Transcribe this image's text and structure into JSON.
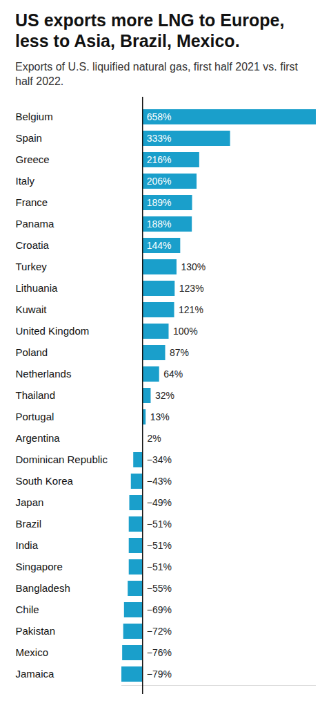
{
  "chart_data": {
    "type": "bar",
    "title": "US exports more LNG to Europe, less to Asia, Brazil, Mexico.",
    "subtitle": "Exports of U.S. liquified natural gas, first half 2021 vs. first half 2022.",
    "orientation": "horizontal",
    "categories": [
      "Belgium",
      "Spain",
      "Greece",
      "Italy",
      "France",
      "Panama",
      "Croatia",
      "Turkey",
      "Lithuania",
      "Kuwait",
      "United Kingdom",
      "Poland",
      "Netherlands",
      "Thailand",
      "Portugal",
      "Argentina",
      "Dominican Republic",
      "South Korea",
      "Japan",
      "Brazil",
      "India",
      "Singapore",
      "Bangladesh",
      "Chile",
      "Pakistan",
      "Mexico",
      "Jamaica"
    ],
    "values": [
      658,
      333,
      216,
      206,
      189,
      188,
      144,
      130,
      123,
      121,
      100,
      87,
      64,
      32,
      13,
      2,
      -34,
      -43,
      -49,
      -51,
      -51,
      -51,
      -55,
      -69,
      -72,
      -76,
      -79
    ],
    "value_labels": [
      "658%",
      "333%",
      "216%",
      "206%",
      "189%",
      "188%",
      "144%",
      "130%",
      "123%",
      "121%",
      "100%",
      "87%",
      "64%",
      "32%",
      "13%",
      "2%",
      "−34%",
      "−43%",
      "−49%",
      "−51%",
      "−51%",
      "−51%",
      "−55%",
      "−69%",
      "−72%",
      "−76%",
      "−79%"
    ],
    "color": "#1a9fcb",
    "xlim": [
      -79,
      658
    ],
    "data_labels": true,
    "tick_labels": "y"
  }
}
